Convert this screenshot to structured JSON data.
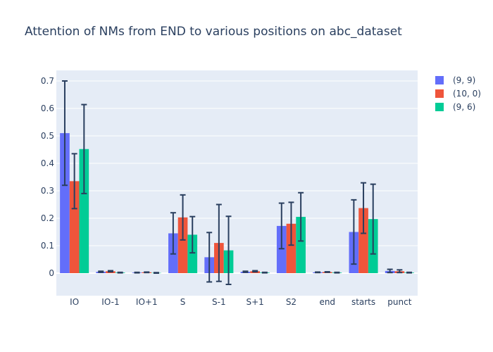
{
  "chart_data": {
    "type": "bar",
    "title": "Attention of NMs from END to various positions on abc_dataset",
    "xlabel": "",
    "ylabel": "",
    "ylim": [
      -0.08,
      0.74
    ],
    "yticks": [
      0,
      0.1,
      0.2,
      0.3,
      0.4,
      0.5,
      0.6,
      0.7
    ],
    "ytick_labels": [
      "0",
      "0.1",
      "0.2",
      "0.3",
      "0.4",
      "0.5",
      "0.6",
      "0.7"
    ],
    "categories": [
      "IO",
      "IO-1",
      "IO+1",
      "S",
      "S-1",
      "S+1",
      "S2",
      "end",
      "starts",
      "punct"
    ],
    "grid": true,
    "legend_position": "top-right",
    "series": [
      {
        "name": "(9, 9)",
        "color": "#636efa",
        "values": [
          0.51,
          0.005,
          0.002,
          0.145,
          0.058,
          0.005,
          0.172,
          0.003,
          0.15,
          0.008
        ],
        "error": [
          0.19,
          0.002,
          0.001,
          0.075,
          0.09,
          0.002,
          0.083,
          0.001,
          0.117,
          0.006
        ]
      },
      {
        "name": "(10, 0)",
        "color": "#ef553b",
        "values": [
          0.335,
          0.007,
          0.003,
          0.203,
          0.11,
          0.007,
          0.18,
          0.004,
          0.237,
          0.007
        ],
        "error": [
          0.1,
          0.002,
          0.001,
          0.082,
          0.14,
          0.002,
          0.078,
          0.001,
          0.092,
          0.005
        ]
      },
      {
        "name": "(9, 6)",
        "color": "#00cc96",
        "values": [
          0.452,
          0.002,
          0.001,
          0.14,
          0.083,
          0.002,
          0.205,
          0.002,
          0.197,
          0.002
        ],
        "error": [
          0.162,
          0.001,
          0.001,
          0.066,
          0.124,
          0.001,
          0.088,
          0.001,
          0.127,
          0.001
        ]
      }
    ]
  }
}
